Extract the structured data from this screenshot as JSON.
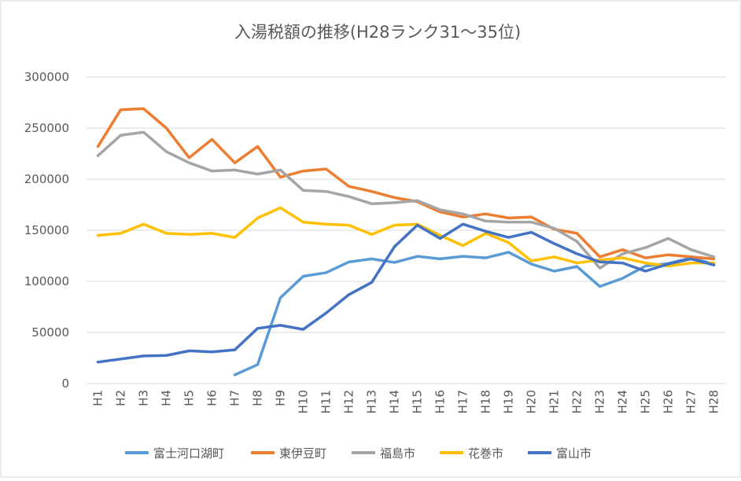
{
  "chart_data": {
    "type": "line",
    "title": "入湯税額の推移(H28ランク31～35位)",
    "categories": [
      "H1",
      "H2",
      "H3",
      "H4",
      "H5",
      "H6",
      "H7",
      "H8",
      "H9",
      "H10",
      "H11",
      "H12",
      "H13",
      "H14",
      "H15",
      "H16",
      "H17",
      "H18",
      "H19",
      "H20",
      "H21",
      "H22",
      "H23",
      "H24",
      "H25",
      "H26",
      "H27",
      "H28"
    ],
    "series": [
      {
        "name": "富士河口湖町",
        "color": "#5B9BD5",
        "values": [
          null,
          null,
          null,
          null,
          null,
          null,
          8500,
          18500,
          84000,
          105000,
          108500,
          119000,
          122000,
          118500,
          124500,
          122000,
          124500,
          123000,
          128500,
          117000,
          110000,
          114500,
          95000,
          103000,
          115000,
          117500,
          123000,
          117000
        ]
      },
      {
        "name": "東伊豆町",
        "color": "#ED7D31",
        "values": [
          232000,
          268000,
          269000,
          250000,
          221000,
          239000,
          216000,
          232000,
          202000,
          208000,
          210000,
          193000,
          188000,
          182000,
          178000,
          168000,
          163000,
          166000,
          162000,
          163000,
          151000,
          147000,
          124000,
          131000,
          123000,
          126000,
          124000,
          122000
        ]
      },
      {
        "name": "福島市",
        "color": "#A5A5A5",
        "values": [
          223000,
          243000,
          246000,
          227000,
          216000,
          208000,
          209000,
          205000,
          209000,
          189000,
          188000,
          183000,
          176000,
          177000,
          179000,
          170000,
          166000,
          159000,
          158000,
          158000,
          152000,
          139000,
          113000,
          127000,
          133000,
          142000,
          131000,
          124000
        ]
      },
      {
        "name": "花巻市",
        "color": "#FFC000",
        "values": [
          145000,
          147000,
          156000,
          147000,
          146000,
          147000,
          143000,
          162000,
          172000,
          158000,
          156000,
          155000,
          146000,
          155000,
          156000,
          145000,
          135000,
          147000,
          138000,
          120000,
          124000,
          118000,
          121000,
          123000,
          118000,
          115000,
          118000,
          118000
        ]
      },
      {
        "name": "富山市",
        "color": "#4472C4",
        "values": [
          21000,
          24000,
          27000,
          27500,
          32000,
          31000,
          33000,
          54000,
          57000,
          53000,
          69000,
          87000,
          99000,
          134000,
          155000,
          142000,
          156000,
          149000,
          143000,
          148000,
          137000,
          127000,
          119000,
          118000,
          110000,
          117000,
          122000,
          116000
        ]
      }
    ],
    "ylim": [
      0,
      300000
    ],
    "yticks": [
      0,
      50000,
      100000,
      150000,
      200000,
      250000,
      300000
    ],
    "grid": true,
    "legend": "bottom"
  }
}
